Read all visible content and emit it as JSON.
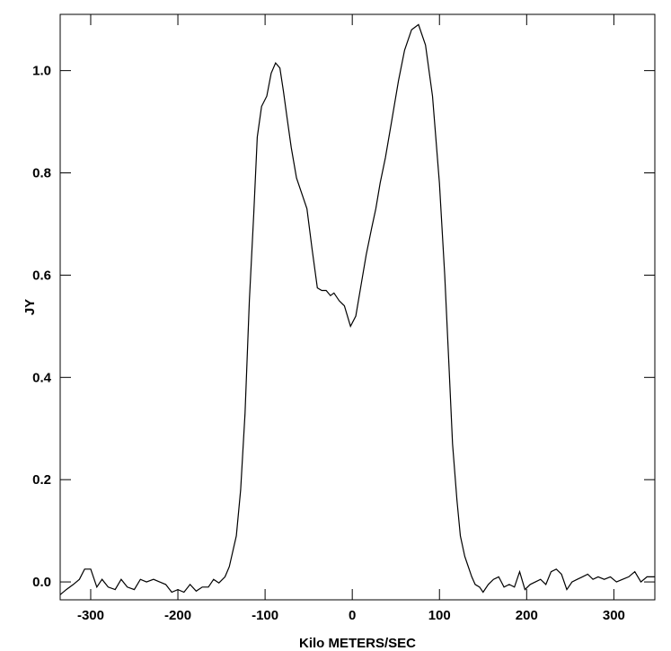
{
  "chart_data": {
    "type": "line",
    "xlabel": "Kilo METERS/SEC",
    "ylabel": "JY",
    "xlim": [
      -335,
      347
    ],
    "ylim": [
      -0.035,
      1.11
    ],
    "xticks": [
      -300,
      -200,
      -100,
      0,
      100,
      200,
      300
    ],
    "xtick_labels": [
      "-300",
      "-200",
      "-100",
      "0",
      "100",
      "200",
      "300"
    ],
    "yticks": [
      0.0,
      0.2,
      0.4,
      0.6,
      0.8,
      1.0
    ],
    "ytick_labels": [
      "0.0",
      "0.2",
      "0.4",
      "0.6",
      "0.8",
      "1.0"
    ],
    "grid": false,
    "line_color": "#000000",
    "x": [
      -335,
      -328,
      -320,
      -313,
      -307,
      -300,
      -293,
      -287,
      -280,
      -272,
      -265,
      -258,
      -250,
      -243,
      -236,
      -228,
      -221,
      -214,
      -207,
      -200,
      -193,
      -186,
      -179,
      -172,
      -165,
      -159,
      -153,
      -146,
      -141,
      -137,
      -133,
      -128,
      -123,
      -118,
      -113,
      -109,
      -104,
      -98,
      -93,
      -88,
      -83,
      -79,
      -75,
      -70,
      -64,
      -58,
      -52,
      -46,
      -40,
      -35,
      -30,
      -25,
      -21,
      -15,
      -9,
      -2,
      4,
      10,
      16,
      22,
      27,
      32,
      38,
      45,
      53,
      60,
      68,
      76,
      84,
      92,
      100,
      106,
      111,
      115,
      120,
      124,
      129,
      133,
      137,
      141,
      146,
      150,
      156,
      162,
      168,
      174,
      180,
      186,
      192,
      198,
      204,
      210,
      216,
      222,
      228,
      234,
      240,
      246,
      252,
      258,
      264,
      270,
      276,
      282,
      289,
      296,
      303,
      310,
      317,
      324,
      331,
      338,
      347
    ],
    "y": [
      -0.025,
      -0.015,
      -0.005,
      0.005,
      0.025,
      0.025,
      -0.01,
      0.005,
      -0.01,
      -0.015,
      0.005,
      -0.01,
      -0.015,
      0.005,
      0.0,
      0.005,
      0.0,
      -0.005,
      -0.02,
      -0.015,
      -0.02,
      -0.005,
      -0.018,
      -0.01,
      -0.01,
      0.005,
      -0.002,
      0.01,
      0.03,
      0.06,
      0.09,
      0.18,
      0.33,
      0.55,
      0.72,
      0.87,
      0.93,
      0.95,
      0.995,
      1.015,
      1.005,
      0.96,
      0.91,
      0.85,
      0.79,
      0.76,
      0.73,
      0.65,
      0.575,
      0.57,
      0.57,
      0.56,
      0.565,
      0.55,
      0.54,
      0.5,
      0.52,
      0.58,
      0.64,
      0.69,
      0.73,
      0.78,
      0.83,
      0.9,
      0.98,
      1.04,
      1.08,
      1.09,
      1.05,
      0.95,
      0.78,
      0.6,
      0.42,
      0.27,
      0.16,
      0.09,
      0.05,
      0.03,
      0.01,
      -0.005,
      -0.01,
      -0.02,
      -0.005,
      0.005,
      0.01,
      -0.01,
      -0.005,
      -0.01,
      0.02,
      -0.015,
      -0.005,
      0.0,
      0.005,
      -0.005,
      0.02,
      0.025,
      0.015,
      -0.015,
      0.0,
      0.005,
      0.01,
      0.015,
      0.005,
      0.01,
      0.005,
      0.01,
      0.0,
      0.005,
      0.01,
      0.02,
      0.0,
      0.01,
      0.01
    ]
  }
}
